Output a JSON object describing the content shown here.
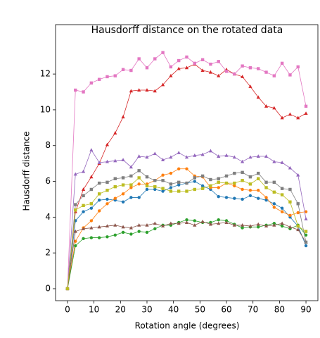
{
  "chart_data": {
    "type": "line",
    "title": "Hausdorff distance on the rotated data",
    "xlabel": "Rotation angle (degrees)",
    "ylabel": "Hausdorff distance",
    "x": [
      0,
      3,
      6,
      9,
      12,
      15,
      18,
      21,
      24,
      27,
      30,
      33,
      36,
      39,
      42,
      45,
      48,
      51,
      54,
      57,
      60,
      63,
      66,
      69,
      72,
      75,
      78,
      81,
      84,
      87,
      90
    ],
    "xlim": [
      -4.5,
      94.5
    ],
    "xticks": [
      0,
      10,
      20,
      30,
      40,
      50,
      60,
      70,
      80,
      90
    ],
    "ylim": [
      -0.67,
      14.76
    ],
    "yticks": [
      0,
      2,
      4,
      6,
      8,
      10,
      12
    ],
    "series": [
      {
        "color": "#1f77b4",
        "marker": "circle",
        "values": [
          0,
          3.8,
          4.3,
          4.5,
          4.95,
          5.0,
          4.95,
          4.85,
          5.1,
          5.1,
          5.55,
          5.55,
          5.45,
          5.65,
          5.8,
          5.9,
          6.0,
          5.75,
          5.55,
          5.15,
          5.1,
          5.05,
          5.0,
          5.2,
          5.05,
          4.95,
          4.75,
          4.5,
          4.0,
          3.5,
          2.4
        ]
      },
      {
        "color": "#ff7f0e",
        "marker": "circle",
        "values": [
          0,
          2.65,
          3.4,
          3.8,
          4.35,
          4.75,
          5.05,
          5.3,
          5.65,
          5.85,
          5.85,
          6.05,
          6.35,
          6.45,
          6.7,
          6.7,
          6.3,
          6.25,
          5.65,
          5.65,
          5.9,
          5.75,
          5.55,
          5.5,
          5.5,
          5.1,
          4.55,
          4.3,
          4.1,
          4.25,
          4.3
        ]
      },
      {
        "color": "#2ca02c",
        "marker": "circle",
        "values": [
          0,
          2.4,
          2.8,
          2.85,
          2.85,
          2.9,
          3.0,
          3.15,
          3.05,
          3.2,
          3.15,
          3.35,
          3.55,
          3.55,
          3.7,
          3.85,
          3.8,
          3.7,
          3.7,
          3.85,
          3.8,
          3.6,
          3.4,
          3.45,
          3.45,
          3.55,
          3.65,
          3.5,
          3.35,
          3.55,
          3.0
        ]
      },
      {
        "color": "#d62728",
        "marker": "triangle",
        "values": [
          0,
          4.3,
          5.55,
          6.25,
          7.0,
          8.05,
          8.7,
          9.6,
          11.05,
          11.1,
          11.1,
          11.05,
          11.4,
          11.9,
          12.3,
          12.35,
          12.55,
          12.2,
          12.1,
          11.9,
          12.25,
          12.0,
          11.85,
          11.3,
          10.7,
          10.2,
          10.1,
          9.55,
          9.75,
          9.55,
          9.8
        ]
      },
      {
        "color": "#9467bd",
        "marker": "triangle",
        "values": [
          0,
          6.4,
          6.55,
          7.75,
          7.05,
          7.1,
          7.15,
          7.2,
          6.8,
          7.4,
          7.35,
          7.55,
          7.2,
          7.35,
          7.6,
          7.35,
          7.45,
          7.5,
          7.7,
          7.4,
          7.45,
          7.35,
          7.1,
          7.35,
          7.4,
          7.4,
          7.1,
          7.05,
          6.75,
          6.35,
          3.9
        ]
      },
      {
        "color": "#8c564b",
        "marker": "triangle",
        "values": [
          0,
          3.2,
          3.35,
          3.4,
          3.45,
          3.5,
          3.55,
          3.45,
          3.4,
          3.55,
          3.55,
          3.65,
          3.5,
          3.65,
          3.65,
          3.7,
          3.55,
          3.75,
          3.6,
          3.65,
          3.7,
          3.55,
          3.55,
          3.5,
          3.6,
          3.5,
          3.55,
          3.65,
          3.45,
          3.3,
          2.6
        ]
      },
      {
        "color": "#e377c2",
        "marker": "square",
        "values": [
          0,
          11.1,
          11.0,
          11.5,
          11.7,
          11.85,
          11.9,
          12.25,
          12.2,
          12.85,
          12.35,
          12.85,
          13.2,
          12.4,
          12.75,
          12.95,
          12.6,
          12.8,
          12.55,
          12.7,
          12.15,
          12.0,
          12.45,
          12.35,
          12.3,
          12.1,
          11.9,
          12.6,
          11.95,
          12.4,
          10.2
        ]
      },
      {
        "color": "#7f7f7f",
        "marker": "square",
        "values": [
          0,
          4.7,
          5.2,
          5.55,
          5.9,
          5.95,
          6.15,
          6.2,
          6.3,
          6.6,
          6.25,
          6.05,
          6.05,
          5.85,
          5.95,
          5.9,
          6.2,
          6.3,
          6.1,
          6.15,
          6.3,
          6.45,
          6.5,
          6.25,
          6.45,
          5.95,
          5.95,
          5.6,
          5.55,
          4.75,
          2.6
        ]
      },
      {
        "color": "#bcbd22",
        "marker": "square",
        "values": [
          0,
          4.4,
          4.65,
          4.75,
          5.3,
          5.5,
          5.7,
          5.8,
          5.8,
          6.2,
          5.75,
          5.7,
          5.6,
          5.45,
          5.45,
          5.45,
          5.55,
          5.6,
          5.75,
          5.95,
          5.9,
          5.9,
          6.05,
          5.85,
          6.15,
          5.65,
          5.4,
          5.25,
          4.85,
          3.5,
          3.2
        ]
      }
    ]
  }
}
